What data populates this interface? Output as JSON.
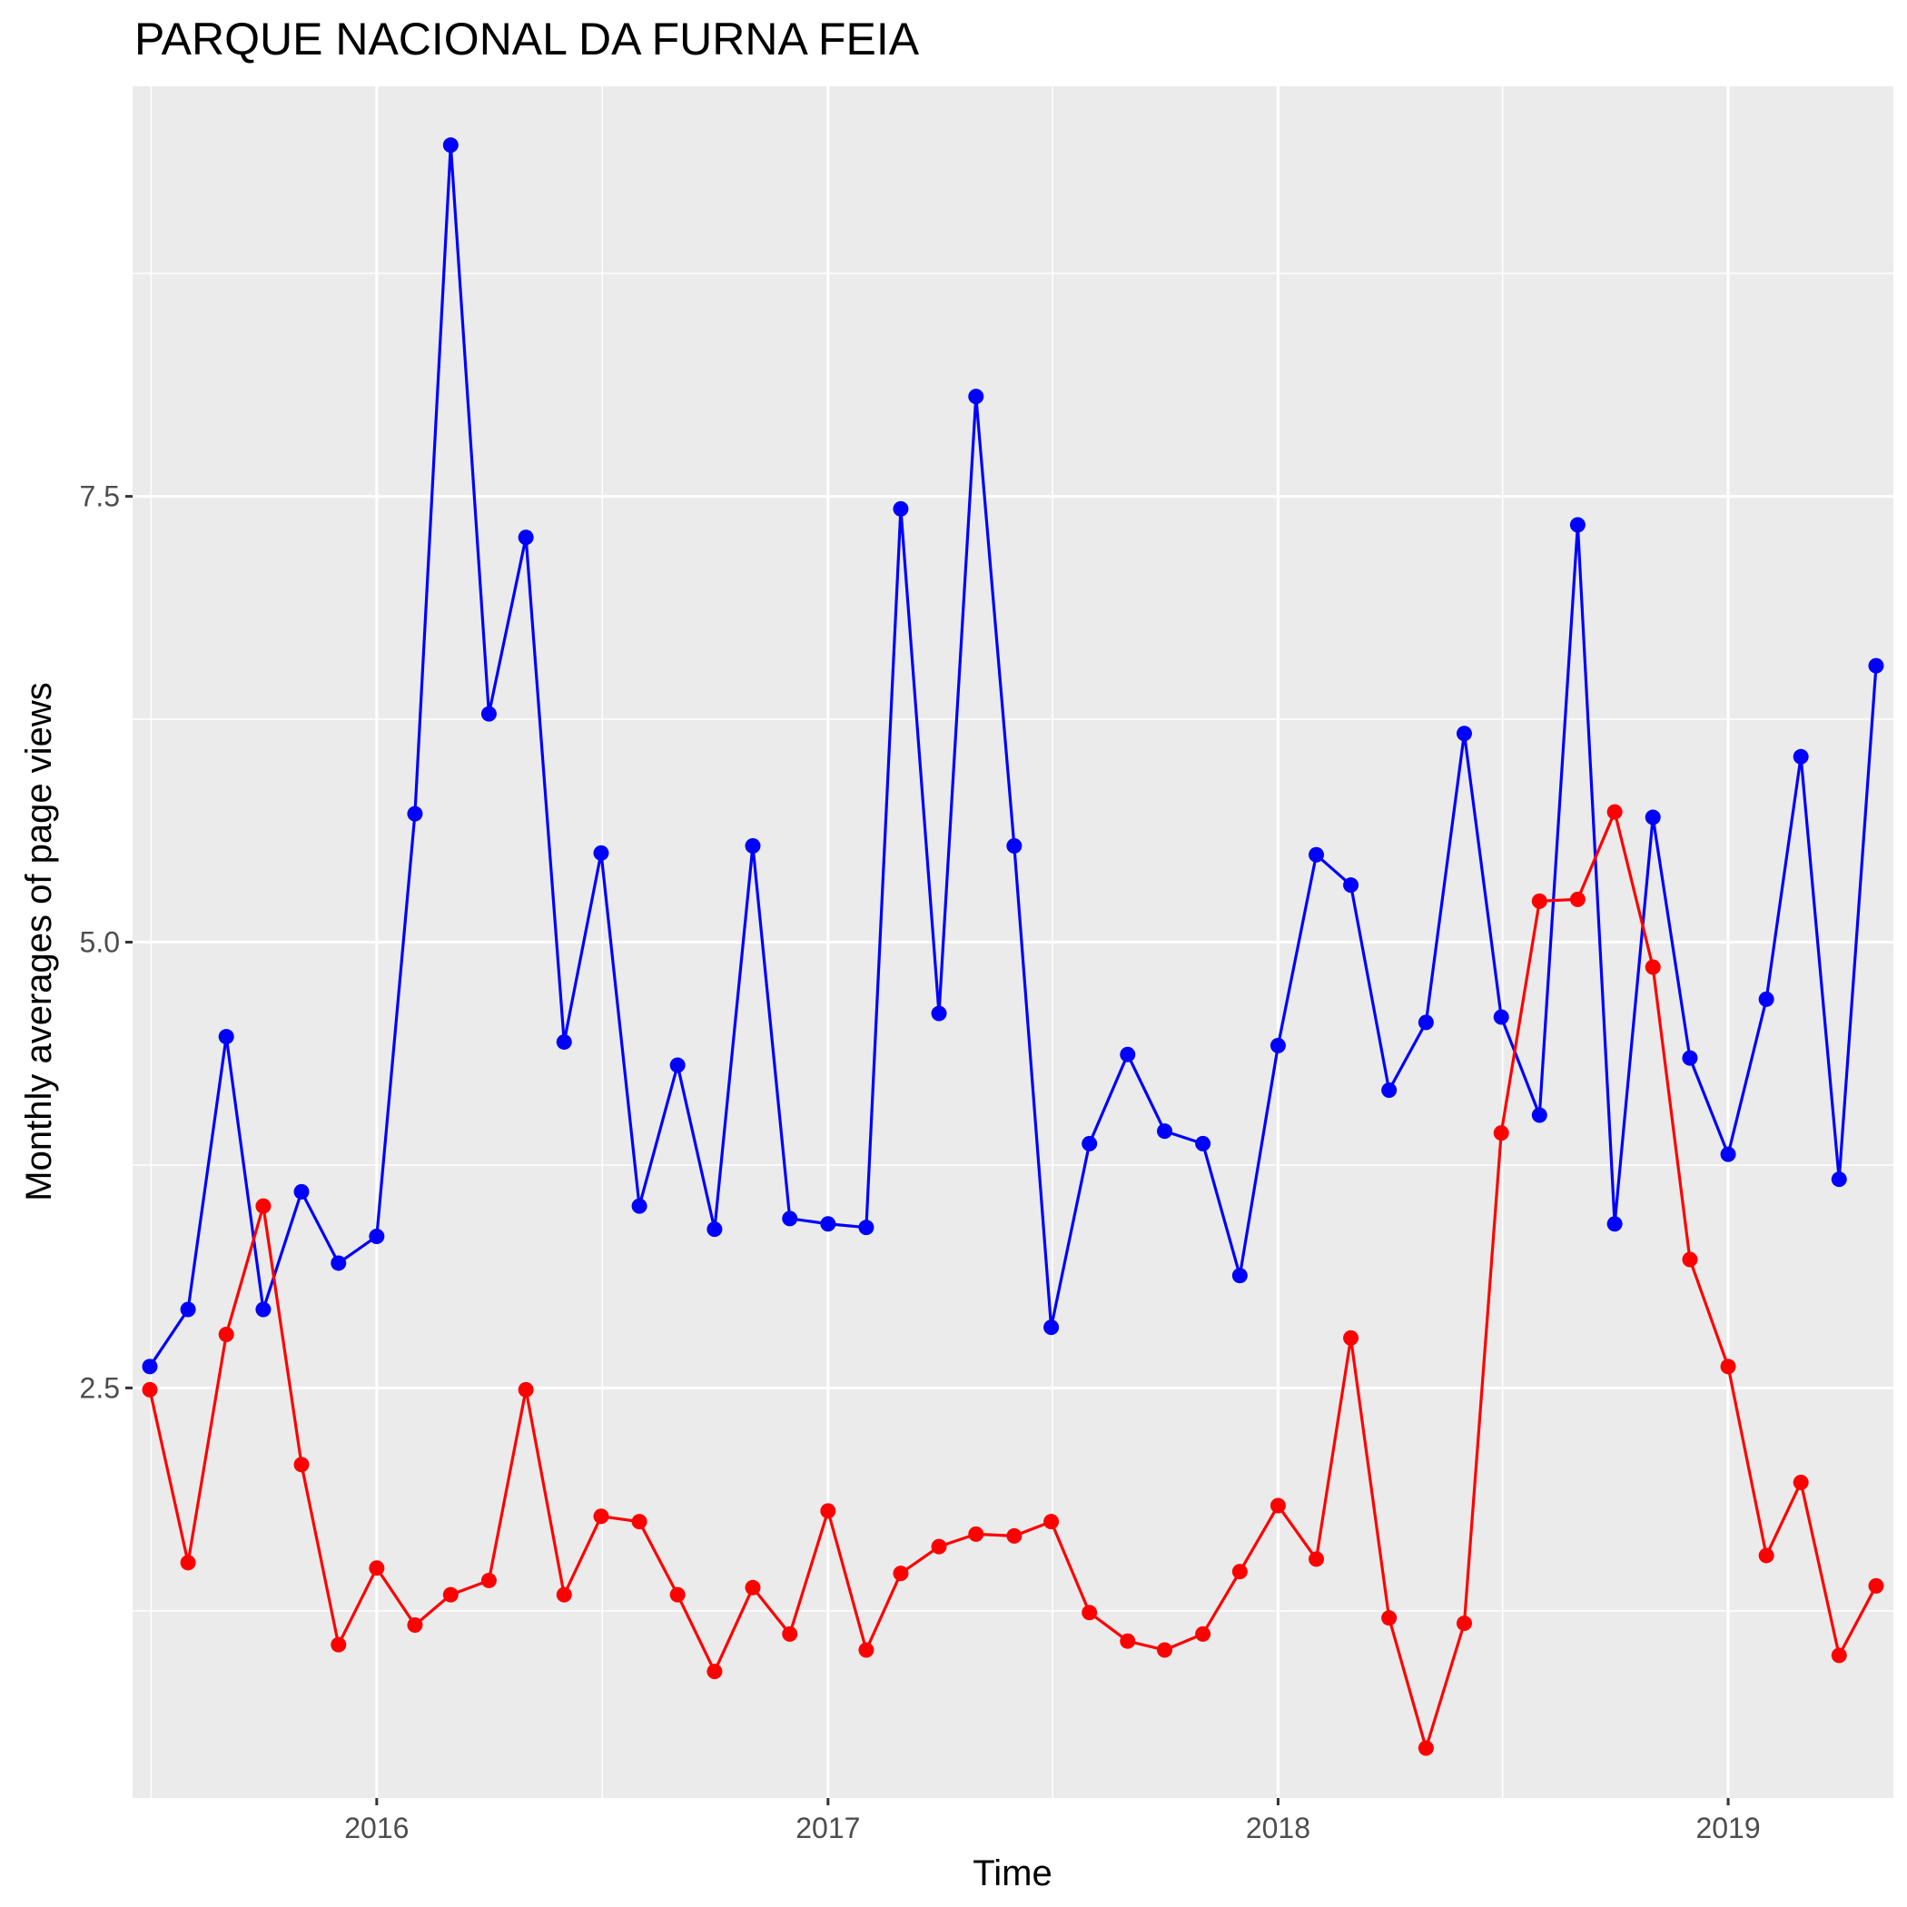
{
  "chart_data": {
    "type": "line",
    "title": "PARQUE NACIONAL DA FURNA FEIA",
    "xlabel": "Time",
    "ylabel": "Monthly averages of page views",
    "x_ticks": [
      "2016",
      "2017",
      "2018",
      "2019"
    ],
    "y_ticks": [
      "2.5",
      "5.0",
      "7.5"
    ],
    "ylim": [
      0.2,
      9.8
    ],
    "xlim": [
      "2015-06-17",
      "2019-05-15"
    ],
    "grid": true,
    "colors": {
      "panel": "#EBEBEB",
      "grid": "#FFFFFF",
      "series_1": "#0000FF",
      "series_2": "#FF0000"
    },
    "x": [
      "2015-07",
      "2015-08",
      "2015-09",
      "2015-10",
      "2015-11",
      "2015-12",
      "2016-01",
      "2016-02",
      "2016-03",
      "2016-04",
      "2016-05",
      "2016-06",
      "2016-07",
      "2016-08",
      "2016-09",
      "2016-10",
      "2016-11",
      "2016-12",
      "2017-01",
      "2017-02",
      "2017-03",
      "2017-04",
      "2017-05",
      "2017-06",
      "2017-07",
      "2017-08",
      "2017-09",
      "2017-10",
      "2017-11",
      "2017-12",
      "2018-01",
      "2018-02",
      "2018-03",
      "2018-04",
      "2018-05",
      "2018-06",
      "2018-07",
      "2018-08",
      "2018-09",
      "2018-10",
      "2018-11",
      "2018-12",
      "2019-01",
      "2019-02",
      "2019-03",
      "2019-04",
      "2019-05"
    ],
    "series": [
      {
        "color": "#0000FF",
        "values": [
          2.62,
          2.94,
          4.47,
          2.94,
          3.6,
          3.2,
          3.35,
          5.72,
          9.47,
          6.28,
          7.27,
          4.44,
          5.5,
          3.52,
          4.31,
          3.39,
          5.54,
          3.45,
          3.42,
          3.4,
          7.43,
          4.6,
          8.06,
          5.54,
          2.84,
          3.87,
          4.37,
          3.94,
          3.87,
          3.13,
          4.42,
          5.49,
          5.32,
          4.17,
          4.55,
          6.17,
          4.58,
          4.03,
          7.34,
          3.42,
          5.7,
          4.35,
          3.81,
          4.68,
          6.04,
          3.67,
          6.55
        ]
      },
      {
        "color": "#FF0000",
        "values": [
          2.49,
          1.52,
          2.8,
          3.52,
          2.07,
          1.06,
          1.49,
          1.17,
          1.34,
          1.42,
          2.49,
          1.34,
          1.78,
          1.75,
          1.34,
          0.91,
          1.38,
          1.12,
          1.81,
          1.03,
          1.46,
          1.61,
          1.68,
          1.67,
          1.75,
          1.24,
          1.08,
          1.03,
          1.12,
          1.47,
          1.84,
          1.54,
          2.78,
          1.21,
          0.48,
          1.18,
          3.93,
          5.23,
          5.24,
          5.73,
          4.86,
          3.22,
          2.62,
          1.56,
          1.97,
          1.0,
          1.39
        ]
      }
    ]
  }
}
